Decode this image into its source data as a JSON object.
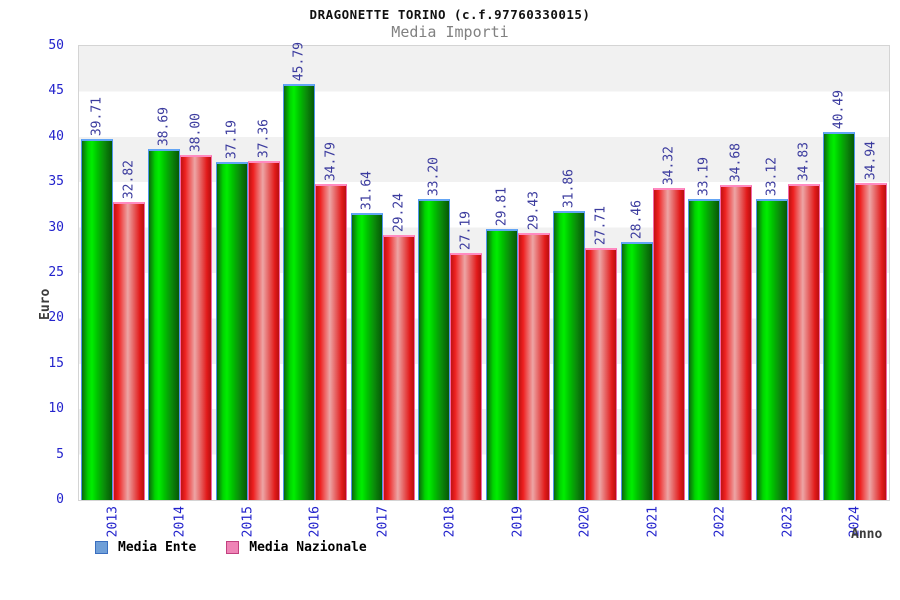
{
  "title": "DRAGONETTE TORINO (c.f.97760330015)",
  "subtitle": "Media Importi",
  "legend": {
    "items": [
      {
        "label": "Media Ente",
        "swatch_color": "#6f9fd8",
        "swatch_border": "#3a6ebf"
      },
      {
        "label": "Media Nazionale",
        "swatch_color": "#ef84b6",
        "swatch_border": "#c2417f"
      }
    ]
  },
  "colors": {
    "tick_labels": "#2323cc",
    "value_labels": "#3b3b9e",
    "subtitle_text": "#818181",
    "axis_titles": "#3c3c3c",
    "band_gray": "#f1f1f1",
    "band_white": "#ffffff",
    "green_bar_main": "#00d800",
    "green_bar_border": "#4f94ea",
    "red_bar_main": "#e81c1c",
    "red_bar_border": "#f468a8"
  },
  "chart_data": {
    "type": "bar",
    "title": "DRAGONETTE TORINO (c.f.97760330015)",
    "subtitle": "Media Importi",
    "xlabel": "Anno",
    "ylabel": "Euro",
    "ylim": [
      0,
      50
    ],
    "ytick_step": 5,
    "grid": "horizontal-bands",
    "legend_position": "bottom-left",
    "value_labels_rotated_vertical": true,
    "categories": [
      "2013",
      "2014",
      "2015",
      "2016",
      "2017",
      "2018",
      "2019",
      "2020",
      "2021",
      "2022",
      "2023",
      "2024"
    ],
    "series": [
      {
        "name": "Media Ente",
        "fill": "green-gradient",
        "values": [
          39.71,
          38.69,
          37.19,
          45.79,
          31.64,
          33.2,
          29.81,
          31.86,
          28.46,
          33.19,
          33.12,
          40.49
        ]
      },
      {
        "name": "Media Nazionale",
        "fill": "red-gradient",
        "values": [
          32.82,
          38.0,
          37.36,
          34.79,
          29.24,
          27.19,
          29.43,
          27.71,
          34.32,
          34.68,
          34.83,
          34.94
        ]
      }
    ]
  }
}
